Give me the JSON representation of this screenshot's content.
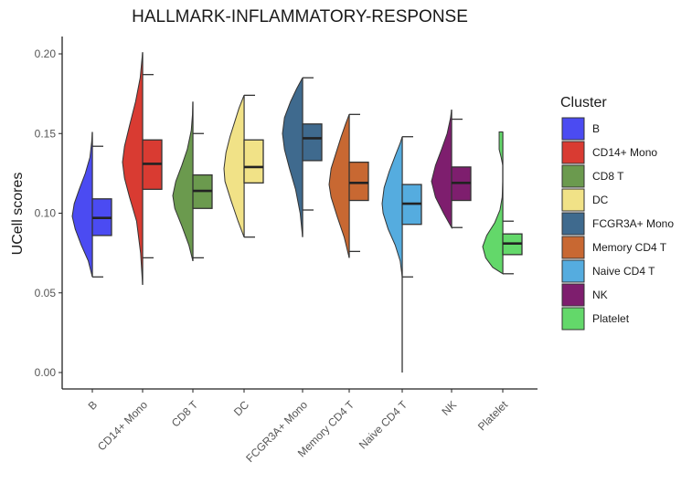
{
  "chart_data": {
    "type": "violin-box",
    "title": "HALLMARK-INFLAMMATORY-RESPONSE",
    "xlabel": "",
    "ylabel": "UCell scores",
    "ylim": [
      0,
      0.21
    ],
    "yticks": [
      0.0,
      0.05,
      0.1,
      0.15,
      0.2
    ],
    "ytick_labels": [
      "0.00",
      "0.05",
      "0.10",
      "0.15",
      "0.20"
    ],
    "grid": false,
    "legend": {
      "title": "Cluster",
      "placement": "right"
    },
    "categories": [
      "B",
      "CD14+ Mono",
      "CD8 T",
      "DC",
      "FCGR3A+ Mono",
      "Memory CD4 T",
      "Naive CD4 T",
      "NK",
      "Platelet"
    ],
    "series": [
      {
        "name": "B",
        "color": "#4B4BF2",
        "min": 0.06,
        "q1": 0.086,
        "median": 0.097,
        "q3": 0.109,
        "max": 0.151,
        "whisker_low": 0.06,
        "whisker_high": 0.142,
        "density_peak": 0.098,
        "density_shape": [
          [
            0.06,
            0.0
          ],
          [
            0.07,
            0.2
          ],
          [
            0.08,
            0.55
          ],
          [
            0.09,
            0.85
          ],
          [
            0.098,
            1.0
          ],
          [
            0.106,
            0.9
          ],
          [
            0.115,
            0.65
          ],
          [
            0.125,
            0.35
          ],
          [
            0.135,
            0.12
          ],
          [
            0.145,
            0.03
          ],
          [
            0.151,
            0.0
          ]
        ]
      },
      {
        "name": "CD14+ Mono",
        "color": "#D93B32",
        "min": 0.055,
        "q1": 0.115,
        "median": 0.131,
        "q3": 0.146,
        "max": 0.201,
        "whisker_low": 0.072,
        "whisker_high": 0.187,
        "density_peak": 0.132,
        "density_shape": [
          [
            0.055,
            0.0
          ],
          [
            0.075,
            0.1
          ],
          [
            0.095,
            0.3
          ],
          [
            0.11,
            0.65
          ],
          [
            0.122,
            0.9
          ],
          [
            0.132,
            1.0
          ],
          [
            0.142,
            0.9
          ],
          [
            0.155,
            0.65
          ],
          [
            0.17,
            0.35
          ],
          [
            0.185,
            0.12
          ],
          [
            0.201,
            0.0
          ]
        ]
      },
      {
        "name": "CD8 T",
        "color": "#6B9A4E",
        "min": 0.07,
        "q1": 0.103,
        "median": 0.114,
        "q3": 0.124,
        "max": 0.17,
        "whisker_low": 0.072,
        "whisker_high": 0.15,
        "density_peak": 0.111,
        "density_shape": [
          [
            0.07,
            0.0
          ],
          [
            0.08,
            0.2
          ],
          [
            0.092,
            0.55
          ],
          [
            0.103,
            0.9
          ],
          [
            0.111,
            1.0
          ],
          [
            0.12,
            0.85
          ],
          [
            0.13,
            0.55
          ],
          [
            0.14,
            0.28
          ],
          [
            0.152,
            0.08
          ],
          [
            0.162,
            0.02
          ],
          [
            0.17,
            0.0
          ]
        ]
      },
      {
        "name": "DC",
        "color": "#F1E287",
        "min": 0.085,
        "q1": 0.119,
        "median": 0.129,
        "q3": 0.146,
        "max": 0.174,
        "whisker_low": 0.085,
        "whisker_high": 0.174,
        "density_peak": 0.128,
        "density_shape": [
          [
            0.085,
            0.0
          ],
          [
            0.095,
            0.3
          ],
          [
            0.108,
            0.65
          ],
          [
            0.12,
            0.95
          ],
          [
            0.128,
            1.0
          ],
          [
            0.138,
            0.9
          ],
          [
            0.148,
            0.7
          ],
          [
            0.158,
            0.45
          ],
          [
            0.166,
            0.25
          ],
          [
            0.174,
            0.0
          ]
        ]
      },
      {
        "name": "FCGR3A+ Mono",
        "color": "#3F6A8E",
        "min": 0.085,
        "q1": 0.133,
        "median": 0.147,
        "q3": 0.156,
        "max": 0.185,
        "whisker_low": 0.102,
        "whisker_high": 0.185,
        "density_peak": 0.15,
        "density_shape": [
          [
            0.085,
            0.0
          ],
          [
            0.1,
            0.12
          ],
          [
            0.115,
            0.35
          ],
          [
            0.128,
            0.65
          ],
          [
            0.14,
            0.9
          ],
          [
            0.15,
            1.0
          ],
          [
            0.16,
            0.9
          ],
          [
            0.17,
            0.6
          ],
          [
            0.178,
            0.3
          ],
          [
            0.185,
            0.0
          ]
        ]
      },
      {
        "name": "Memory CD4 T",
        "color": "#C86832",
        "min": 0.072,
        "q1": 0.108,
        "median": 0.119,
        "q3": 0.132,
        "max": 0.162,
        "whisker_low": 0.076,
        "whisker_high": 0.162,
        "density_peak": 0.118,
        "density_shape": [
          [
            0.072,
            0.0
          ],
          [
            0.085,
            0.25
          ],
          [
            0.098,
            0.6
          ],
          [
            0.11,
            0.9
          ],
          [
            0.118,
            1.0
          ],
          [
            0.128,
            0.9
          ],
          [
            0.138,
            0.65
          ],
          [
            0.148,
            0.4
          ],
          [
            0.156,
            0.18
          ],
          [
            0.162,
            0.0
          ]
        ]
      },
      {
        "name": "Naive CD4 T",
        "color": "#55ACDF",
        "min": 0.0,
        "q1": 0.093,
        "median": 0.106,
        "q3": 0.118,
        "max": 0.148,
        "whisker_low": 0.06,
        "whisker_high": 0.148,
        "density_peak": 0.106,
        "density_shape": [
          [
            0.06,
            0.0
          ],
          [
            0.07,
            0.1
          ],
          [
            0.08,
            0.35
          ],
          [
            0.09,
            0.7
          ],
          [
            0.1,
            0.95
          ],
          [
            0.106,
            1.0
          ],
          [
            0.116,
            0.9
          ],
          [
            0.126,
            0.65
          ],
          [
            0.136,
            0.35
          ],
          [
            0.144,
            0.1
          ],
          [
            0.148,
            0.0
          ]
        ]
      },
      {
        "name": "NK",
        "color": "#7E1E6E",
        "min": 0.091,
        "q1": 0.108,
        "median": 0.119,
        "q3": 0.129,
        "max": 0.165,
        "whisker_low": 0.091,
        "whisker_high": 0.159,
        "density_peak": 0.12,
        "density_shape": [
          [
            0.091,
            0.0
          ],
          [
            0.1,
            0.4
          ],
          [
            0.11,
            0.8
          ],
          [
            0.12,
            1.0
          ],
          [
            0.13,
            0.8
          ],
          [
            0.14,
            0.5
          ],
          [
            0.15,
            0.22
          ],
          [
            0.16,
            0.05
          ],
          [
            0.165,
            0.0
          ]
        ]
      },
      {
        "name": "Platelet",
        "color": "#63D86A",
        "min": 0.062,
        "q1": 0.074,
        "median": 0.081,
        "q3": 0.087,
        "max": 0.151,
        "whisker_low": 0.062,
        "whisker_high": 0.095,
        "density_peak": 0.079,
        "density_shape": [
          [
            0.062,
            0.0
          ],
          [
            0.066,
            0.5
          ],
          [
            0.072,
            0.85
          ],
          [
            0.079,
            1.0
          ],
          [
            0.086,
            0.8
          ],
          [
            0.094,
            0.4
          ],
          [
            0.102,
            0.14
          ],
          [
            0.11,
            0.03
          ],
          [
            0.12,
            0.0
          ],
          [
            0.13,
            0.0
          ],
          [
            0.135,
            0.08
          ],
          [
            0.14,
            0.18
          ],
          [
            0.151,
            0.18
          ]
        ]
      }
    ]
  }
}
